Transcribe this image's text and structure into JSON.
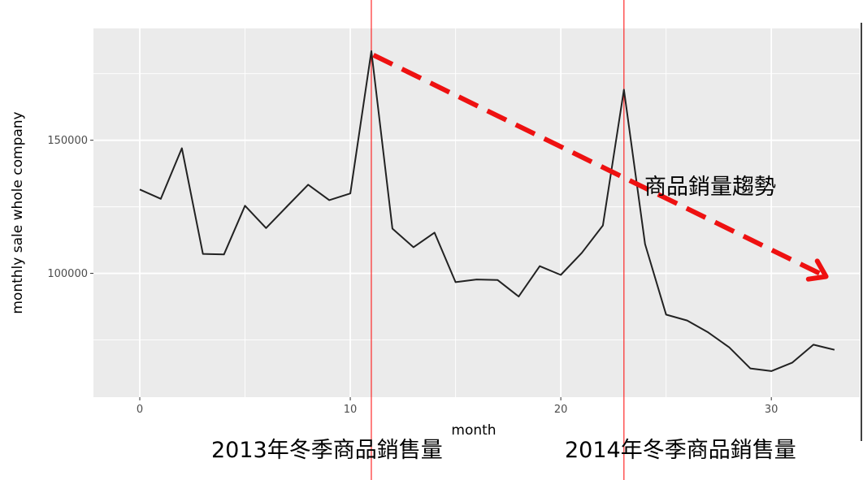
{
  "chart_data": {
    "type": "line",
    "xlabel": "month",
    "ylabel": "monthly sale whole company",
    "xlim": [
      -2.2,
      34.2
    ],
    "ylim": [
      53500,
      192000
    ],
    "x_ticks": [
      0,
      10,
      20,
      30
    ],
    "x_tick_labels": [
      "0",
      "10",
      "20",
      "30"
    ],
    "y_ticks": [
      100000,
      150000
    ],
    "y_tick_labels": [
      "100000",
      "150000"
    ],
    "x_minor": [
      5,
      15,
      25
    ],
    "y_minor": [
      75000,
      125000,
      175000
    ],
    "grid": true,
    "background": "#ebebeb",
    "series": [
      {
        "color": "#222222",
        "x": [
          0,
          1,
          2,
          3,
          4,
          5,
          6,
          7,
          8,
          9,
          10,
          11,
          12,
          13,
          14,
          15,
          16,
          17,
          18,
          19,
          20,
          21,
          22,
          23,
          24,
          25,
          26,
          27,
          28,
          29,
          30,
          31,
          32,
          33
        ],
        "y": [
          131500,
          128000,
          147000,
          107300,
          107100,
          125400,
          117000,
          125200,
          133300,
          127500,
          130000,
          183500,
          116800,
          109800,
          115300,
          96700,
          97700,
          97500,
          91300,
          102700,
          99400,
          107700,
          118000,
          169000,
          111000,
          84500,
          82300,
          77800,
          72200,
          64300,
          63300,
          66500,
          73200,
          71300
        ]
      }
    ],
    "reference_lines": [
      {
        "x": 11,
        "color": "#ff0000"
      },
      {
        "x": 23,
        "color": "#ff0000"
      }
    ],
    "trend_arrow": {
      "from": {
        "x": 11.1,
        "y": 182000
      },
      "to": {
        "x": 32.6,
        "y": 98800
      },
      "color": "#ee1111"
    },
    "annotations": {
      "trend_label": "商品銷量趨勢",
      "label_2013": "2013年冬季商品銷售量",
      "label_2014": "2014年冬季商品銷售量"
    }
  }
}
